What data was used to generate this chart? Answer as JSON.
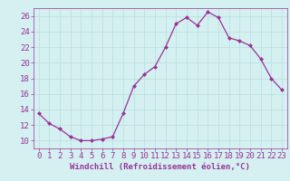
{
  "x": [
    0,
    1,
    2,
    3,
    4,
    5,
    6,
    7,
    8,
    9,
    10,
    11,
    12,
    13,
    14,
    15,
    16,
    17,
    18,
    19,
    20,
    21,
    22,
    23
  ],
  "y": [
    13.5,
    12.2,
    11.5,
    10.5,
    10.0,
    10.0,
    10.2,
    10.5,
    13.5,
    17.0,
    18.5,
    19.5,
    22.0,
    25.0,
    25.8,
    24.8,
    26.5,
    25.8,
    23.2,
    22.8,
    22.2,
    20.5,
    18.0,
    16.5
  ],
  "xlabel": "Windchill (Refroidissement éolien,°C)",
  "ylim": [
    9,
    27
  ],
  "xlim": [
    -0.5,
    23.5
  ],
  "xticks": [
    0,
    1,
    2,
    3,
    4,
    5,
    6,
    7,
    8,
    9,
    10,
    11,
    12,
    13,
    14,
    15,
    16,
    17,
    18,
    19,
    20,
    21,
    22,
    23
  ],
  "yticks": [
    10,
    12,
    14,
    16,
    18,
    20,
    22,
    24,
    26
  ],
  "line_color": "#993399",
  "marker_color": "#993399",
  "bg_color": "#d4f0f0",
  "grid_color": "#b8dede",
  "tick_color": "#993399",
  "label_color": "#993399",
  "tick_fontsize": 6.5,
  "xlabel_fontsize": 6.5
}
